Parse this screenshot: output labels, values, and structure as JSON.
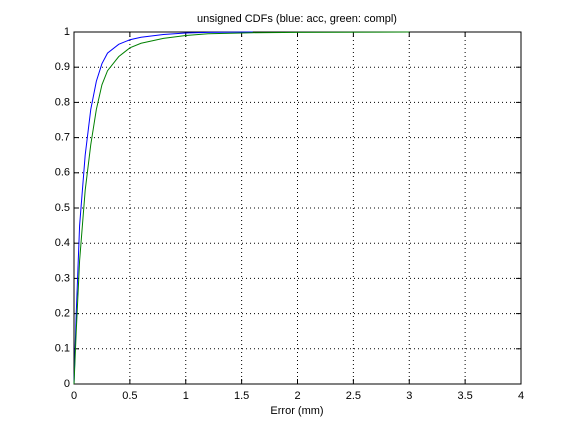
{
  "chart_data": {
    "type": "line",
    "title": "unsigned CDFs (blue: acc, green: compl)",
    "x_label": "Error (mm)",
    "x": [
      0,
      0.02,
      0.05,
      0.1,
      0.15,
      0.2,
      0.25,
      0.3,
      0.4,
      0.5,
      0.6,
      0.8,
      1.0,
      1.2,
      1.6,
      2.0,
      3.0
    ],
    "series": [
      {
        "color": "#0000ff",
        "values": [
          0,
          0.2,
          0.45,
          0.65,
          0.78,
          0.86,
          0.91,
          0.94,
          0.965,
          0.978,
          0.985,
          0.993,
          0.997,
          0.999,
          1.0,
          null,
          null
        ]
      },
      {
        "color": "#008000",
        "values": [
          0,
          0.15,
          0.35,
          0.55,
          0.68,
          0.78,
          0.85,
          0.89,
          0.93,
          0.955,
          0.968,
          0.982,
          0.99,
          0.995,
          0.998,
          0.999,
          1.0
        ]
      }
    ],
    "xlim": [
      0,
      4
    ],
    "xticks": [
      0,
      0.5,
      1,
      1.5,
      2,
      2.5,
      3,
      3.5,
      4
    ],
    "ylim": [
      0,
      1
    ],
    "yticks": [
      0,
      0.1,
      0.2,
      0.3,
      0.4,
      0.5,
      0.6,
      0.7,
      0.8,
      0.9,
      1
    ],
    "grid": true
  }
}
